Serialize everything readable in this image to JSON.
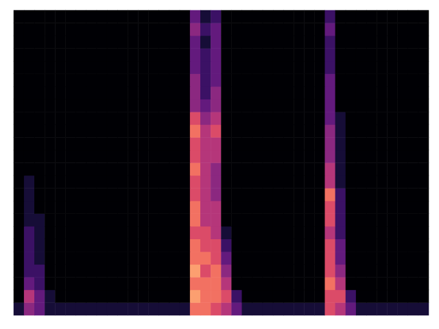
{
  "chart_data": {
    "type": "heatmap",
    "tick_labels": false,
    "zlim": [
      0,
      10
    ],
    "values": [
      [
        1,
        4,
        3,
        1,
        1,
        1,
        1,
        1,
        1,
        1,
        1,
        1,
        1,
        1,
        1,
        1,
        1,
        7,
        7,
        6,
        5,
        3,
        1,
        1,
        1,
        1,
        1,
        1,
        1,
        1,
        6,
        5,
        3,
        1,
        1,
        1,
        1,
        1,
        1,
        1
      ],
      [
        0,
        5,
        3,
        1,
        0,
        0,
        0,
        0,
        0,
        0,
        0,
        0,
        0,
        0,
        0,
        0,
        0,
        8,
        7,
        7,
        6,
        2,
        0,
        0,
        0,
        0,
        0,
        0,
        0,
        0,
        6,
        6,
        2,
        0,
        0,
        0,
        0,
        0,
        0,
        0
      ],
      [
        0,
        3,
        2,
        0,
        0,
        0,
        0,
        0,
        0,
        0,
        0,
        0,
        0,
        0,
        0,
        0,
        0,
        7,
        7,
        7,
        5,
        0,
        0,
        0,
        0,
        0,
        0,
        0,
        0,
        0,
        7,
        5,
        0,
        0,
        0,
        0,
        0,
        0,
        0,
        0
      ],
      [
        0,
        2,
        2,
        0,
        0,
        0,
        0,
        0,
        0,
        0,
        0,
        0,
        0,
        0,
        0,
        0,
        0,
        8,
        6,
        7,
        4,
        0,
        0,
        0,
        0,
        0,
        0,
        0,
        0,
        0,
        6,
        4,
        0,
        0,
        0,
        0,
        0,
        0,
        0,
        0
      ],
      [
        0,
        2,
        1,
        0,
        0,
        0,
        0,
        0,
        0,
        0,
        0,
        0,
        0,
        0,
        0,
        0,
        0,
        7,
        7,
        6,
        3,
        0,
        0,
        0,
        0,
        0,
        0,
        0,
        0,
        0,
        6,
        3,
        0,
        0,
        0,
        0,
        0,
        0,
        0,
        0
      ],
      [
        0,
        2,
        1,
        0,
        0,
        0,
        0,
        0,
        0,
        0,
        0,
        0,
        0,
        0,
        0,
        0,
        0,
        7,
        6,
        6,
        2,
        0,
        0,
        0,
        0,
        0,
        0,
        0,
        0,
        0,
        6,
        3,
        0,
        0,
        0,
        0,
        0,
        0,
        0,
        0
      ],
      [
        0,
        2,
        1,
        0,
        0,
        0,
        0,
        0,
        0,
        0,
        0,
        0,
        0,
        0,
        0,
        0,
        0,
        6,
        6,
        5,
        1,
        0,
        0,
        0,
        0,
        0,
        0,
        0,
        0,
        0,
        5,
        2,
        0,
        0,
        0,
        0,
        0,
        0,
        0,
        0
      ],
      [
        0,
        1,
        1,
        0,
        0,
        0,
        0,
        0,
        0,
        0,
        0,
        0,
        0,
        0,
        0,
        0,
        0,
        7,
        5,
        5,
        0,
        0,
        0,
        0,
        0,
        0,
        0,
        0,
        0,
        0,
        6,
        2,
        0,
        0,
        0,
        0,
        0,
        0,
        0,
        0
      ],
      [
        0,
        1,
        0,
        0,
        0,
        0,
        0,
        0,
        0,
        0,
        0,
        0,
        0,
        0,
        0,
        0,
        0,
        7,
        5,
        5,
        0,
        0,
        0,
        0,
        0,
        0,
        0,
        0,
        0,
        0,
        6,
        2,
        0,
        0,
        0,
        0,
        0,
        0,
        0,
        0
      ],
      [
        0,
        1,
        0,
        0,
        0,
        0,
        0,
        0,
        0,
        0,
        0,
        0,
        0,
        0,
        0,
        0,
        0,
        6,
        5,
        4,
        0,
        0,
        0,
        0,
        0,
        0,
        0,
        0,
        0,
        0,
        7,
        2,
        0,
        0,
        0,
        0,
        0,
        0,
        0,
        0
      ],
      [
        0,
        1,
        0,
        0,
        0,
        0,
        0,
        0,
        0,
        0,
        0,
        0,
        0,
        0,
        0,
        0,
        0,
        6,
        5,
        4,
        0,
        0,
        0,
        0,
        0,
        0,
        0,
        0,
        0,
        0,
        5,
        1,
        0,
        0,
        0,
        0,
        0,
        0,
        0,
        0
      ],
      [
        0,
        0,
        0,
        0,
        0,
        0,
        0,
        0,
        0,
        0,
        0,
        0,
        0,
        0,
        0,
        0,
        0,
        7,
        5,
        4,
        0,
        0,
        0,
        0,
        0,
        0,
        0,
        0,
        0,
        0,
        5,
        1,
        0,
        0,
        0,
        0,
        0,
        0,
        0,
        0
      ],
      [
        0,
        0,
        0,
        0,
        0,
        0,
        0,
        0,
        0,
        0,
        0,
        0,
        0,
        0,
        0,
        0,
        0,
        6,
        5,
        5,
        0,
        0,
        0,
        0,
        0,
        0,
        0,
        0,
        0,
        0,
        4,
        1,
        0,
        0,
        0,
        0,
        0,
        0,
        0,
        0
      ],
      [
        0,
        0,
        0,
        0,
        0,
        0,
        0,
        0,
        0,
        0,
        0,
        0,
        0,
        0,
        0,
        0,
        0,
        6,
        5,
        5,
        0,
        0,
        0,
        0,
        0,
        0,
        0,
        0,
        0,
        0,
        4,
        1,
        0,
        0,
        0,
        0,
        0,
        0,
        0,
        0
      ],
      [
        0,
        0,
        0,
        0,
        0,
        0,
        0,
        0,
        0,
        0,
        0,
        0,
        0,
        0,
        0,
        0,
        0,
        7,
        5,
        6,
        0,
        0,
        0,
        0,
        0,
        0,
        0,
        0,
        0,
        0,
        4,
        1,
        0,
        0,
        0,
        0,
        0,
        0,
        0,
        0
      ],
      [
        0,
        0,
        0,
        0,
        0,
        0,
        0,
        0,
        0,
        0,
        0,
        0,
        0,
        0,
        0,
        0,
        0,
        6,
        4,
        5,
        0,
        0,
        0,
        0,
        0,
        0,
        0,
        0,
        0,
        0,
        3,
        1,
        0,
        0,
        0,
        0,
        0,
        0,
        0,
        0
      ],
      [
        0,
        0,
        0,
        0,
        0,
        0,
        0,
        0,
        0,
        0,
        0,
        0,
        0,
        0,
        0,
        0,
        0,
        4,
        3,
        4,
        0,
        0,
        0,
        0,
        0,
        0,
        0,
        0,
        0,
        0,
        3,
        0,
        0,
        0,
        0,
        0,
        0,
        0,
        0,
        0
      ],
      [
        0,
        0,
        0,
        0,
        0,
        0,
        0,
        0,
        0,
        0,
        0,
        0,
        0,
        0,
        0,
        0,
        0,
        4,
        2,
        4,
        0,
        0,
        0,
        0,
        0,
        0,
        0,
        0,
        0,
        0,
        3,
        0,
        0,
        0,
        0,
        0,
        0,
        0,
        0,
        0
      ],
      [
        0,
        0,
        0,
        0,
        0,
        0,
        0,
        0,
        0,
        0,
        0,
        0,
        0,
        0,
        0,
        0,
        0,
        4,
        2,
        3,
        0,
        0,
        0,
        0,
        0,
        0,
        0,
        0,
        0,
        0,
        3,
        0,
        0,
        0,
        0,
        0,
        0,
        0,
        0,
        0
      ],
      [
        0,
        0,
        0,
        0,
        0,
        0,
        0,
        0,
        0,
        0,
        0,
        0,
        0,
        0,
        0,
        0,
        0,
        3,
        2,
        3,
        0,
        0,
        0,
        0,
        0,
        0,
        0,
        0,
        0,
        0,
        2,
        0,
        0,
        0,
        0,
        0,
        0,
        0,
        0,
        0
      ],
      [
        0,
        0,
        0,
        0,
        0,
        0,
        0,
        0,
        0,
        0,
        0,
        0,
        0,
        0,
        0,
        0,
        0,
        3,
        2,
        3,
        0,
        0,
        0,
        0,
        0,
        0,
        0,
        0,
        0,
        0,
        2,
        0,
        0,
        0,
        0,
        0,
        0,
        0,
        0,
        0
      ],
      [
        0,
        0,
        0,
        0,
        0,
        0,
        0,
        0,
        0,
        0,
        0,
        0,
        0,
        0,
        0,
        0,
        0,
        3,
        1,
        3,
        0,
        0,
        0,
        0,
        0,
        0,
        0,
        0,
        0,
        0,
        2,
        0,
        0,
        0,
        0,
        0,
        0,
        0,
        0,
        0
      ],
      [
        0,
        0,
        0,
        0,
        0,
        0,
        0,
        0,
        0,
        0,
        0,
        0,
        0,
        0,
        0,
        0,
        0,
        4,
        2,
        3,
        0,
        0,
        0,
        0,
        0,
        0,
        0,
        0,
        0,
        0,
        3,
        0,
        0,
        0,
        0,
        0,
        0,
        0,
        0,
        0
      ],
      [
        0,
        0,
        0,
        0,
        0,
        0,
        0,
        0,
        0,
        0,
        0,
        0,
        0,
        0,
        0,
        0,
        0,
        3,
        1,
        2,
        0,
        0,
        0,
        0,
        0,
        0,
        0,
        0,
        0,
        0,
        2,
        0,
        0,
        0,
        0,
        0,
        0,
        0,
        0,
        0
      ]
    ]
  }
}
